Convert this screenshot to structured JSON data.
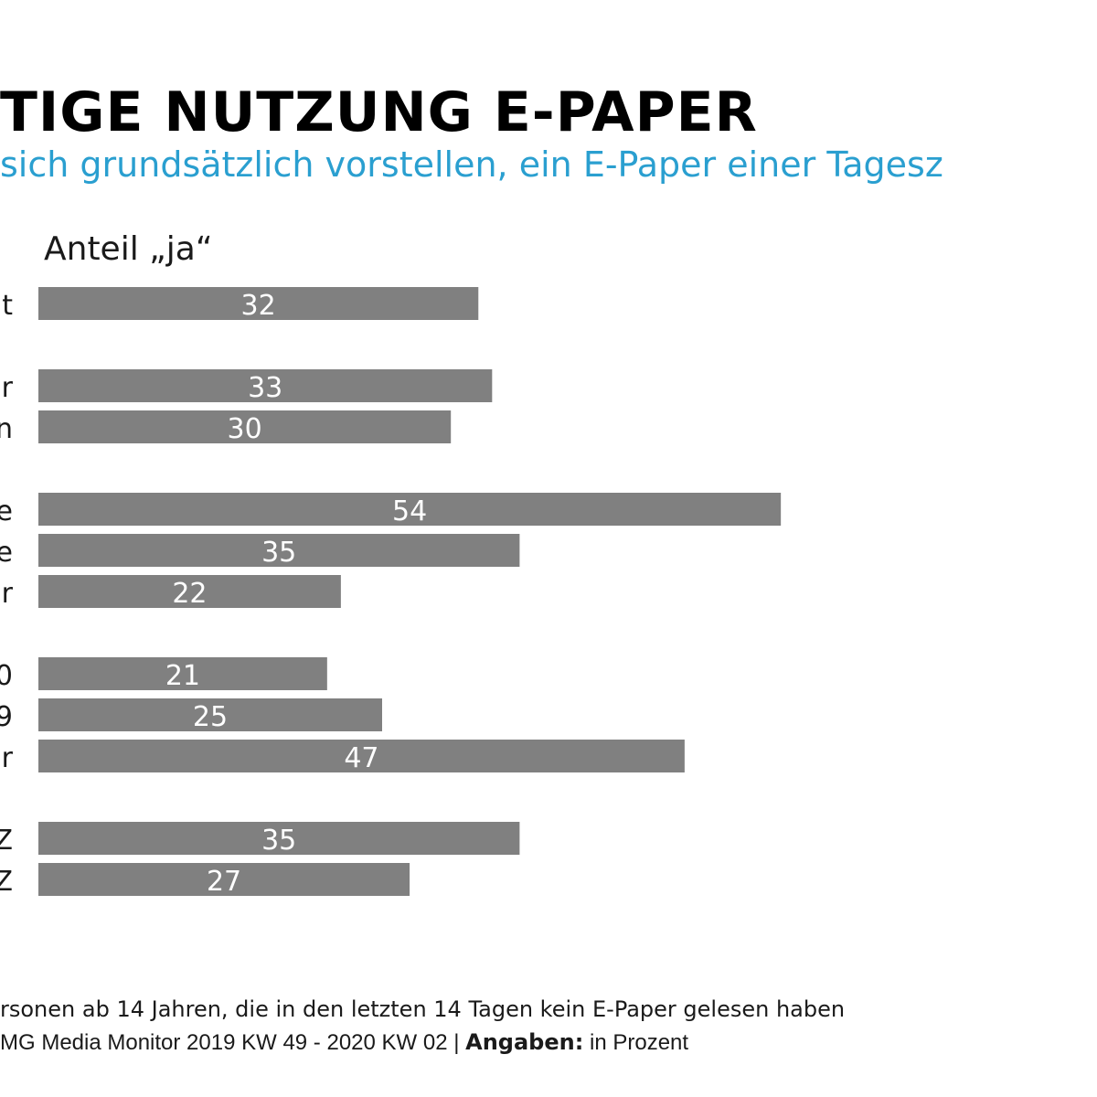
{
  "title": "TIGE NUTZUNG E-PAPER",
  "subtitle": "sich grundsätzlich vorstellen, ein E-Paper einer Tagesz",
  "bar_color": "#808080",
  "value_label_color": "#ffffff",
  "chart_data": {
    "type": "bar",
    "orientation": "horizontal",
    "title": "TIGE NUTZUNG E-PAPER",
    "subtitle": "sich grundsätzlich vorstellen, ein E-Paper einer Tagesz",
    "xlabel": "Anteil „ja“",
    "ylabel": "",
    "xlim": [
      0,
      100
    ],
    "grid": false,
    "categories": [
      "t",
      "r",
      "n",
      "e",
      "e",
      "r",
      "0",
      "9",
      "r",
      "Z",
      "Z"
    ],
    "groups": [
      [
        0
      ],
      [
        1,
        2
      ],
      [
        3,
        4,
        5
      ],
      [
        6,
        7,
        8
      ],
      [
        9,
        10
      ]
    ],
    "values": [
      32,
      33,
      30,
      54,
      35,
      22,
      21,
      25,
      47,
      35,
      27
    ]
  },
  "footnote": {
    "line1": "rsonen ab 14 Jahren, die in den letzten 14 Tagen kein E-Paper gelesen haben",
    "source": "MG Media Monitor 2019 KW 49 - 2020 KW 02",
    "separator": "|",
    "unit_label": "Angaben:",
    "unit_value": "in Prozent"
  }
}
